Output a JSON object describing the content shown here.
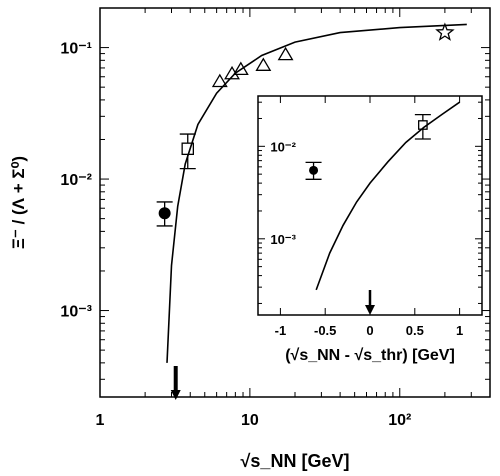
{
  "chart_data": [
    {
      "type": "scatter",
      "xscale": "log",
      "yscale": "log",
      "xlim": [
        1,
        400
      ],
      "ylim": [
        0.00022,
        0.2
      ],
      "xticks": [
        1,
        10,
        100
      ],
      "xtick_labels": [
        "1",
        "10",
        "10²"
      ],
      "yticks": [
        0.001,
        0.01,
        0.1
      ],
      "ytick_labels": [
        "10⁻³",
        "10⁻²",
        "10⁻¹"
      ],
      "xlabel": "√s_NN  [GeV]",
      "ylabel": "Ξ⁻ / (Λ + Σ⁰)",
      "arrow_x": 3.2,
      "series": [
        {
          "marker": "filled-circle",
          "points": [
            {
              "x": 2.7,
              "y": 0.0055,
              "ylo": 0.0044,
              "yhi": 0.0067
            }
          ]
        },
        {
          "marker": "open-square",
          "points": [
            {
              "x": 3.85,
              "y": 0.017,
              "ylo": 0.012,
              "yhi": 0.022
            }
          ]
        },
        {
          "marker": "open-triangle",
          "points": [
            {
              "x": 6.3,
              "y": 0.055
            },
            {
              "x": 7.6,
              "y": 0.063
            },
            {
              "x": 8.7,
              "y": 0.068
            },
            {
              "x": 12.3,
              "y": 0.073
            },
            {
              "x": 17.3,
              "y": 0.088
            }
          ]
        },
        {
          "marker": "open-star",
          "points": [
            {
              "x": 200,
              "y": 0.13
            }
          ]
        },
        {
          "marker": "line",
          "points": [
            {
              "x": 2.8,
              "y": 0.0004
            },
            {
              "x": 3.0,
              "y": 0.0022
            },
            {
              "x": 3.3,
              "y": 0.0062
            },
            {
              "x": 3.7,
              "y": 0.013
            },
            {
              "x": 4.5,
              "y": 0.026
            },
            {
              "x": 6.0,
              "y": 0.045
            },
            {
              "x": 8.0,
              "y": 0.064
            },
            {
              "x": 12.0,
              "y": 0.087
            },
            {
              "x": 20.0,
              "y": 0.11
            },
            {
              "x": 40.0,
              "y": 0.13
            },
            {
              "x": 100.0,
              "y": 0.142
            },
            {
              "x": 280.0,
              "y": 0.15
            }
          ]
        }
      ]
    },
    {
      "type": "scatter",
      "role": "inset",
      "xscale": "linear",
      "yscale": "log",
      "xlim": [
        -1.25,
        1.25
      ],
      "ylim": [
        0.00015,
        0.035
      ],
      "xticks": [
        -1,
        -0.5,
        0,
        0.5,
        1
      ],
      "xtick_labels": [
        "-1",
        "-0.5",
        "0",
        "0.5",
        "1"
      ],
      "yticks": [
        0.001,
        0.01
      ],
      "ytick_labels": [
        "10⁻³",
        "10⁻²"
      ],
      "xlabel": "(√s_NN - √s_thr) [GeV]",
      "arrow_x": 0,
      "series": [
        {
          "marker": "filled-circle",
          "points": [
            {
              "x": -0.63,
              "y": 0.0055,
              "ylo": 0.0044,
              "yhi": 0.0067
            }
          ]
        },
        {
          "marker": "open-square",
          "points": [
            {
              "x": 0.59,
              "y": 0.017,
              "ylo": 0.012,
              "yhi": 0.022
            }
          ]
        },
        {
          "marker": "line",
          "points": [
            {
              "x": -0.6,
              "y": 0.00028
            },
            {
              "x": -0.45,
              "y": 0.0007
            },
            {
              "x": -0.3,
              "y": 0.0014
            },
            {
              "x": -0.15,
              "y": 0.0025
            },
            {
              "x": 0.0,
              "y": 0.004
            },
            {
              "x": 0.2,
              "y": 0.0068
            },
            {
              "x": 0.4,
              "y": 0.011
            },
            {
              "x": 0.6,
              "y": 0.016
            },
            {
              "x": 0.8,
              "y": 0.022
            },
            {
              "x": 1.0,
              "y": 0.03
            }
          ]
        }
      ]
    }
  ]
}
